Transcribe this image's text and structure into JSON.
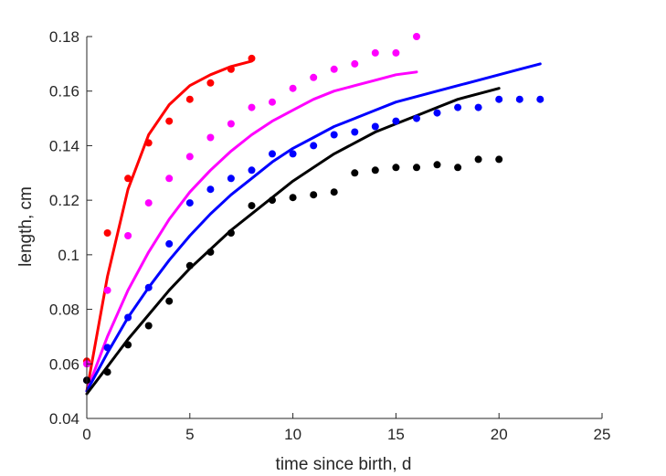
{
  "chart_data": {
    "type": "scatter",
    "title": "",
    "xlabel": "time since birth, d",
    "ylabel": "length, cm",
    "xlim": [
      0,
      25
    ],
    "ylim": [
      0.04,
      0.18
    ],
    "xticks": [
      0,
      5,
      10,
      15,
      20,
      25
    ],
    "xtick_labels": [
      "0",
      "5",
      "10",
      "15",
      "20",
      "25"
    ],
    "yticks": [
      0.04,
      0.06,
      0.08,
      0.1,
      0.12,
      0.14,
      0.16,
      0.18
    ],
    "ytick_labels": [
      "0.04",
      "0.06",
      "0.08",
      "0.1",
      "0.12",
      "0.14",
      "0.16",
      "0.18"
    ],
    "grid": false,
    "legend": "none",
    "series": [
      {
        "color": "#ff0000",
        "points": [
          [
            0,
            0.061
          ],
          [
            1,
            0.108
          ],
          [
            2,
            0.128
          ],
          [
            3,
            0.141
          ],
          [
            4,
            0.149
          ],
          [
            5,
            0.157
          ],
          [
            6,
            0.163
          ],
          [
            7,
            0.168
          ],
          [
            8,
            0.172
          ]
        ],
        "fit": [
          [
            0,
            0.05
          ],
          [
            1,
            0.092
          ],
          [
            2,
            0.124
          ],
          [
            3,
            0.144
          ],
          [
            4,
            0.155
          ],
          [
            5,
            0.162
          ],
          [
            6,
            0.166
          ],
          [
            7,
            0.169
          ],
          [
            8,
            0.171
          ]
        ]
      },
      {
        "color": "#ff00ff",
        "points": [
          [
            0,
            0.06
          ],
          [
            1,
            0.087
          ],
          [
            2,
            0.107
          ],
          [
            3,
            0.119
          ],
          [
            4,
            0.128
          ],
          [
            5,
            0.136
          ],
          [
            6,
            0.143
          ],
          [
            7,
            0.148
          ],
          [
            8,
            0.154
          ],
          [
            9,
            0.156
          ],
          [
            10,
            0.161
          ],
          [
            11,
            0.165
          ],
          [
            12,
            0.168
          ],
          [
            13,
            0.17
          ],
          [
            14,
            0.174
          ],
          [
            15,
            0.174
          ],
          [
            16,
            0.18
          ]
        ],
        "fit": [
          [
            0,
            0.05
          ],
          [
            1,
            0.07
          ],
          [
            2,
            0.087
          ],
          [
            3,
            0.101
          ],
          [
            4,
            0.113
          ],
          [
            5,
            0.123
          ],
          [
            6,
            0.131
          ],
          [
            7,
            0.138
          ],
          [
            8,
            0.144
          ],
          [
            9,
            0.149
          ],
          [
            10,
            0.153
          ],
          [
            11,
            0.157
          ],
          [
            12,
            0.16
          ],
          [
            13,
            0.162
          ],
          [
            14,
            0.164
          ],
          [
            15,
            0.166
          ],
          [
            16,
            0.167
          ]
        ]
      },
      {
        "color": "#0000ff",
        "points": [
          [
            0,
            0.054
          ],
          [
            1,
            0.066
          ],
          [
            2,
            0.077
          ],
          [
            3,
            0.088
          ],
          [
            4,
            0.104
          ],
          [
            5,
            0.119
          ],
          [
            6,
            0.124
          ],
          [
            7,
            0.128
          ],
          [
            8,
            0.131
          ],
          [
            9,
            0.137
          ],
          [
            10,
            0.137
          ],
          [
            11,
            0.14
          ],
          [
            12,
            0.144
          ],
          [
            13,
            0.145
          ],
          [
            14,
            0.147
          ],
          [
            15,
            0.149
          ],
          [
            16,
            0.15
          ],
          [
            17,
            0.152
          ],
          [
            18,
            0.154
          ],
          [
            19,
            0.154
          ],
          [
            20,
            0.157
          ],
          [
            21,
            0.157
          ],
          [
            22,
            0.157
          ]
        ],
        "fit": [
          [
            0,
            0.05
          ],
          [
            1,
            0.064
          ],
          [
            2,
            0.077
          ],
          [
            3,
            0.088
          ],
          [
            4,
            0.098
          ],
          [
            5,
            0.107
          ],
          [
            6,
            0.115
          ],
          [
            7,
            0.122
          ],
          [
            8,
            0.128
          ],
          [
            9,
            0.134
          ],
          [
            10,
            0.139
          ],
          [
            11,
            0.143
          ],
          [
            12,
            0.147
          ],
          [
            13,
            0.15
          ],
          [
            14,
            0.153
          ],
          [
            15,
            0.156
          ],
          [
            16,
            0.158
          ],
          [
            17,
            0.16
          ],
          [
            18,
            0.162
          ],
          [
            19,
            0.164
          ],
          [
            20,
            0.166
          ],
          [
            21,
            0.168
          ],
          [
            22,
            0.17
          ]
        ]
      },
      {
        "color": "#000000",
        "points": [
          [
            0,
            0.054
          ],
          [
            1,
            0.057
          ],
          [
            2,
            0.067
          ],
          [
            3,
            0.074
          ],
          [
            4,
            0.083
          ],
          [
            5,
            0.096
          ],
          [
            6,
            0.101
          ],
          [
            7,
            0.108
          ],
          [
            8,
            0.118
          ],
          [
            9,
            0.12
          ],
          [
            10,
            0.121
          ],
          [
            11,
            0.122
          ],
          [
            12,
            0.123
          ],
          [
            13,
            0.13
          ],
          [
            14,
            0.131
          ],
          [
            15,
            0.132
          ],
          [
            16,
            0.132
          ],
          [
            17,
            0.133
          ],
          [
            18,
            0.132
          ],
          [
            19,
            0.135
          ],
          [
            20,
            0.135
          ]
        ],
        "fit": [
          [
            0,
            0.049
          ],
          [
            1,
            0.059
          ],
          [
            2,
            0.069
          ],
          [
            3,
            0.078
          ],
          [
            4,
            0.087
          ],
          [
            5,
            0.095
          ],
          [
            6,
            0.102
          ],
          [
            7,
            0.109
          ],
          [
            8,
            0.115
          ],
          [
            9,
            0.121
          ],
          [
            10,
            0.127
          ],
          [
            11,
            0.132
          ],
          [
            12,
            0.137
          ],
          [
            13,
            0.141
          ],
          [
            14,
            0.145
          ],
          [
            15,
            0.148
          ],
          [
            16,
            0.151
          ],
          [
            17,
            0.154
          ],
          [
            18,
            0.157
          ],
          [
            19,
            0.159
          ],
          [
            20,
            0.161
          ]
        ]
      }
    ]
  }
}
